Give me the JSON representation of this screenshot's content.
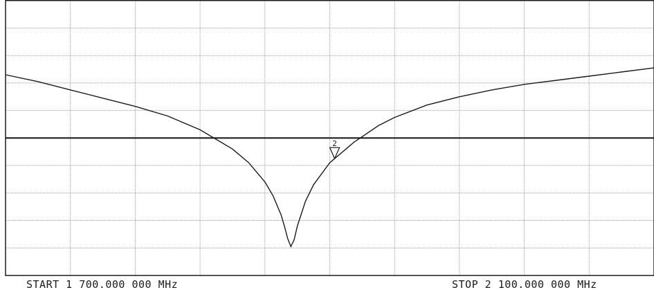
{
  "chart_data": {
    "type": "line",
    "title": "",
    "xlabel": "",
    "ylabel": "",
    "start_label": "START 1 700.000 000 MHz",
    "stop_label": "STOP 2 100.000 000 MHz",
    "x_range_mhz": [
      1700,
      2100
    ],
    "y_range_div": [
      0,
      10
    ],
    "divisions": {
      "x": 10,
      "y": 10
    },
    "reference_level_div": 5,
    "grid": true,
    "trace_color": "#1a1a1a",
    "series": [
      {
        "x": [
          1700,
          1720,
          1740,
          1760,
          1780,
          1800,
          1820,
          1840,
          1850,
          1860,
          1865,
          1870,
          1872,
          1874,
          1876,
          1878,
          1880,
          1885,
          1890,
          1900,
          1910,
          1915,
          1920,
          1930,
          1940,
          1960,
          1980,
          2000,
          2020,
          2040,
          2060,
          2080,
          2100
        ],
        "y": [
          7.3,
          7.05,
          6.75,
          6.45,
          6.15,
          5.8,
          5.3,
          4.6,
          4.1,
          3.4,
          2.9,
          2.2,
          1.8,
          1.35,
          1.05,
          1.3,
          1.8,
          2.7,
          3.3,
          4.1,
          4.6,
          4.85,
          5.05,
          5.45,
          5.75,
          6.2,
          6.5,
          6.75,
          6.95,
          7.1,
          7.25,
          7.4,
          7.55
        ]
      }
    ],
    "markers": [
      {
        "label": "2",
        "x": 1903
      }
    ]
  }
}
